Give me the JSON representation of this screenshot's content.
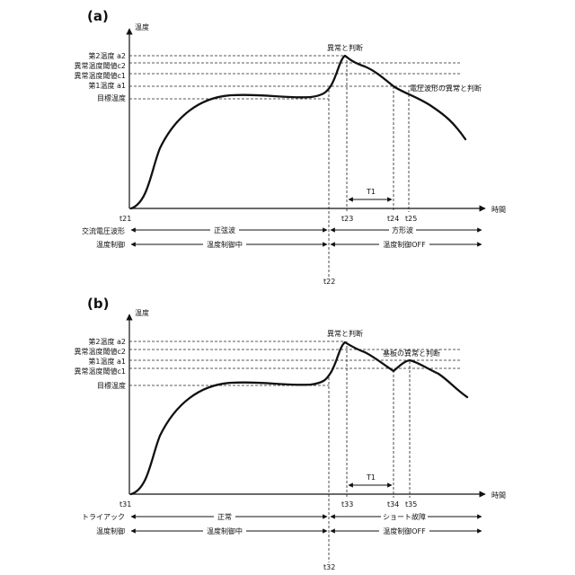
{
  "panels": [
    {
      "letter": "(a)",
      "y_axis_label": "温度",
      "x_axis_label": "時間",
      "levels": {
        "a2": "第2温度 a2",
        "c2": "異常温度閾値c2",
        "c1": "異常温度閾値c1",
        "a1": "第1温度 a1",
        "target": "目標温度"
      },
      "annotations": {
        "peak": "異常と判断",
        "second": "電圧波形の異常と判断",
        "interval": "T1"
      },
      "time_labels": {
        "start": "t21",
        "mid": "t22",
        "t_a": "t23",
        "t_b": "t24",
        "t_c": "t25"
      },
      "rows": [
        {
          "name": "交流電圧波形",
          "left": "正弦波",
          "right": "方形波"
        },
        {
          "name": "温度制御",
          "left": "温度制御中",
          "right": "温度制御OFF"
        }
      ]
    },
    {
      "letter": "(b)",
      "y_axis_label": "温度",
      "x_axis_label": "時間",
      "levels": {
        "a2": "第2温度 a2",
        "c2": "異常温度閾値c2",
        "a1": "第1温度 a1",
        "c1": "異常温度閾値c1",
        "target": "目標温度"
      },
      "annotations": {
        "peak": "異常と判断",
        "second": "基板の異常と判断",
        "interval": "T1"
      },
      "time_labels": {
        "start": "t31",
        "mid": "t32",
        "t_a": "t33",
        "t_b": "t34",
        "t_c": "t35"
      },
      "rows": [
        {
          "name": "トライアック",
          "left": "正常",
          "right": "ショート故障"
        },
        {
          "name": "温度制御",
          "left": "温度制御中",
          "right": "温度制御OFF"
        }
      ]
    }
  ]
}
